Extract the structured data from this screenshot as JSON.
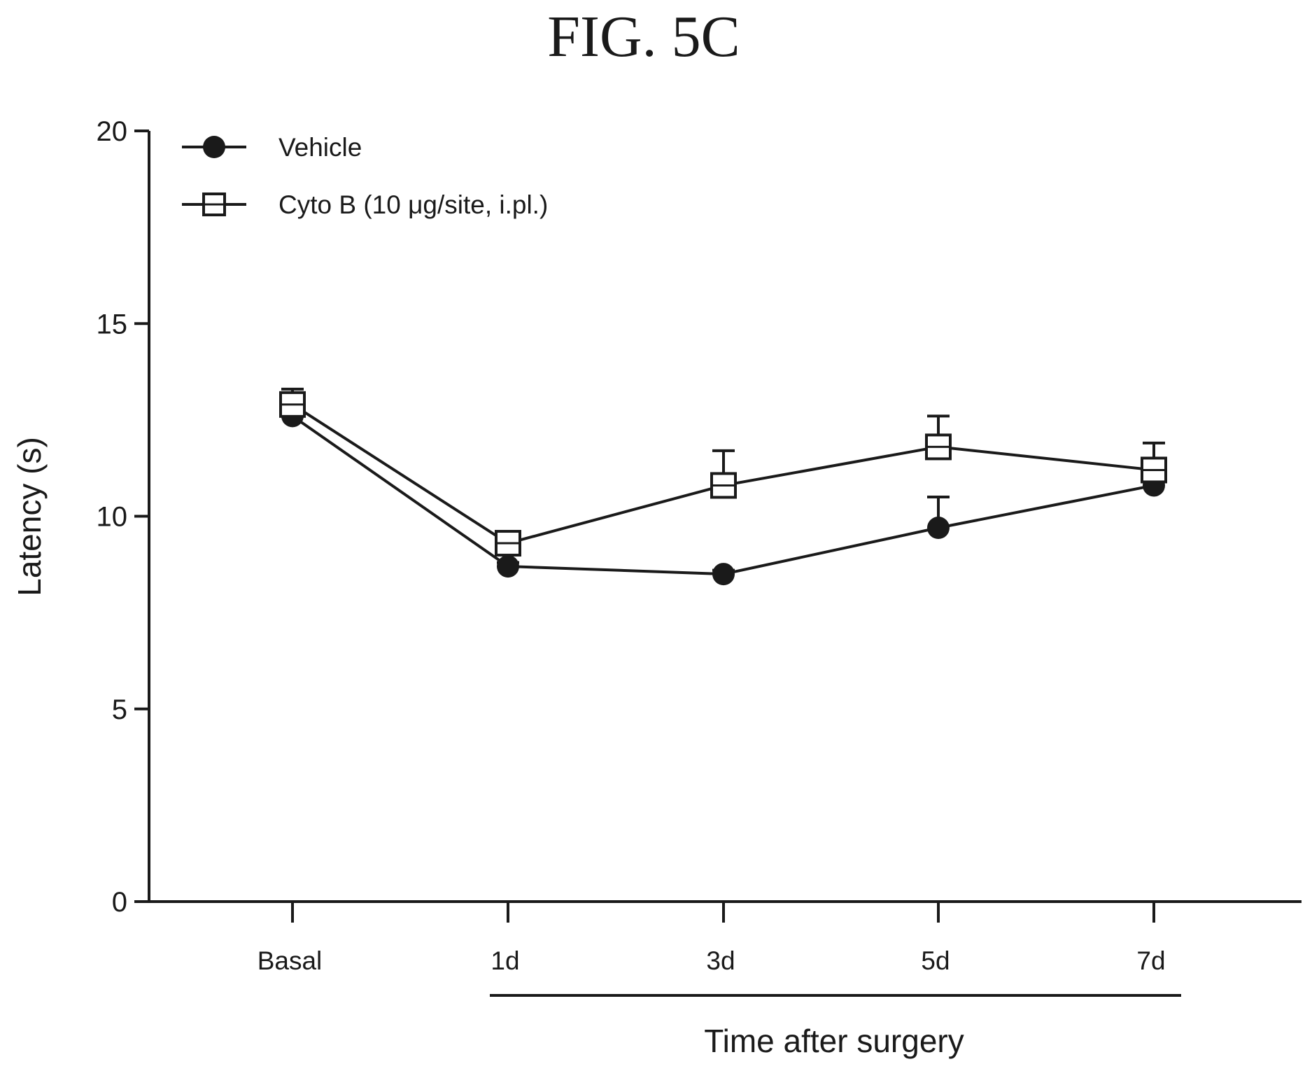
{
  "chart_data": {
    "type": "line",
    "title": "FIG. 5C",
    "xlabel": "Time after surgery",
    "ylabel": "Latency (s)",
    "categories": [
      "Basal",
      "1d",
      "3d",
      "5d",
      "7d"
    ],
    "ylim": [
      0,
      20
    ],
    "yticks": [
      "0",
      "5",
      "10",
      "15",
      "20"
    ],
    "grid": false,
    "legend_position": "top-left",
    "series": [
      {
        "name": "Vehicle",
        "marker": "filled-circle",
        "values": [
          12.6,
          8.7,
          8.5,
          9.7,
          10.8
        ],
        "error_upper": [
          0.3,
          0.1,
          0.1,
          0.8,
          0.1
        ]
      },
      {
        "name": "Cyto B (10  μg/site, i.pl.)",
        "marker": "open-square",
        "values": [
          12.9,
          9.3,
          10.8,
          11.8,
          11.2
        ],
        "error_upper": [
          0.4,
          0.2,
          0.9,
          0.8,
          0.7
        ]
      }
    ],
    "colors": {
      "ink": "#1a1a1a",
      "background": "#ffffff"
    }
  }
}
